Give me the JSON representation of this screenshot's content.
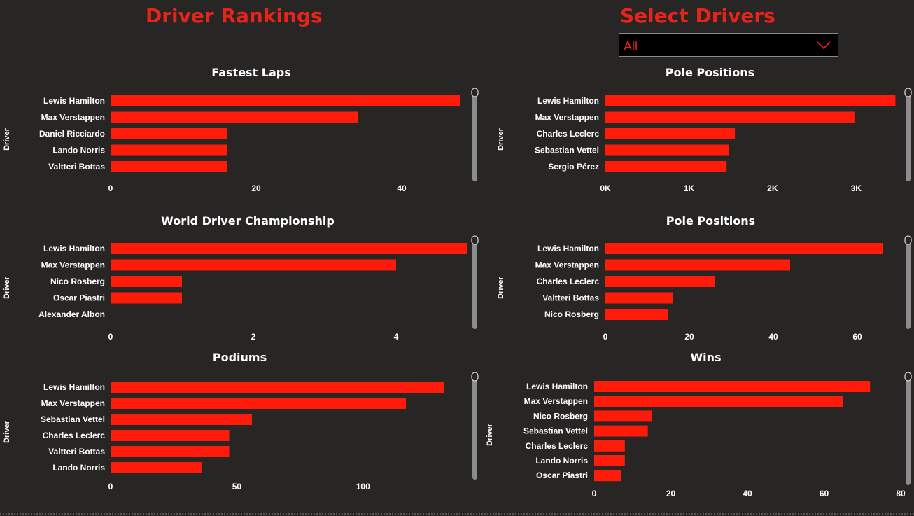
{
  "header": {
    "rankings_title": "Driver Rankings",
    "select_title": "Select Drivers"
  },
  "slicer": {
    "value": "All",
    "icon": "chevron-down-icon"
  },
  "colors": {
    "bar": "#ff1a0a",
    "accent": "#e8231a",
    "text": "#ffffff",
    "background": "#282625"
  },
  "chart_data": [
    {
      "id": "fastest-laps",
      "type": "bar",
      "orientation": "horizontal",
      "title": "Fastest Laps",
      "ylabel": "Driver",
      "categories": [
        "Lewis Hamilton",
        "Max Verstappen",
        "Daniel Ricciardo",
        "Lando Norris",
        "Valtteri Bottas"
      ],
      "values": [
        48,
        34,
        16,
        16,
        16
      ],
      "xlim": [
        0,
        50
      ],
      "xticks": [
        0,
        20,
        40
      ],
      "xtick_labels": [
        "0",
        "20",
        "40"
      ]
    },
    {
      "id": "pole-positions-1",
      "type": "bar",
      "orientation": "horizontal",
      "title": "Pole Positions",
      "ylabel": "Driver",
      "categories": [
        "Lewis Hamilton",
        "Max Verstappen",
        "Charles Leclerc",
        "Sebastian Vettel",
        "Sergio Pérez"
      ],
      "values": [
        3470,
        2980,
        1550,
        1480,
        1450
      ],
      "xlim": [
        0,
        3500
      ],
      "xticks": [
        0,
        1000,
        2000,
        3000
      ],
      "xtick_labels": [
        "0K",
        "1K",
        "2K",
        "3K"
      ]
    },
    {
      "id": "world-driver-championship",
      "type": "bar",
      "orientation": "horizontal",
      "title": "World Driver Championship",
      "ylabel": "Driver",
      "categories": [
        "Lewis Hamilton",
        "Max Verstappen",
        "Nico Rosberg",
        "Oscar Piastri",
        "Alexander Albon"
      ],
      "values": [
        5,
        4,
        1,
        1,
        0
      ],
      "xlim": [
        0,
        5
      ],
      "xticks": [
        0,
        2,
        4
      ],
      "xtick_labels": [
        "0",
        "2",
        "4"
      ]
    },
    {
      "id": "pole-positions-2",
      "type": "bar",
      "orientation": "horizontal",
      "title": "Pole Positions",
      "ylabel": "Driver",
      "categories": [
        "Lewis Hamilton",
        "Max Verstappen",
        "Charles Leclerc",
        "Valtteri Bottas",
        "Nico Rosberg"
      ],
      "values": [
        66,
        44,
        26,
        16,
        15
      ],
      "xlim": [
        0,
        70
      ],
      "xticks": [
        0,
        20,
        40,
        60
      ],
      "xtick_labels": [
        "0",
        "20",
        "40",
        "60"
      ]
    },
    {
      "id": "podiums",
      "type": "bar",
      "orientation": "horizontal",
      "title": "Podiums",
      "ylabel": "Driver",
      "categories": [
        "Lewis Hamilton",
        "Max Verstappen",
        "Sebastian Vettel",
        "Charles Leclerc",
        "Valtteri Bottas",
        "Lando Norris"
      ],
      "values": [
        132,
        117,
        56,
        47,
        47,
        36
      ],
      "xlim": [
        0,
        135
      ],
      "xticks": [
        0,
        50,
        100
      ],
      "xtick_labels": [
        "0",
        "50",
        "100"
      ]
    },
    {
      "id": "wins",
      "type": "bar",
      "orientation": "horizontal",
      "title": "Wins",
      "ylabel": "Driver",
      "categories": [
        "Lewis Hamilton",
        "Max Verstappen",
        "Nico Rosberg",
        "Sebastian Vettel",
        "Charles Leclerc",
        "Lando Norris",
        "Oscar Piastri"
      ],
      "values": [
        72,
        65,
        15,
        14,
        8,
        8,
        7
      ],
      "xlim": [
        0,
        80
      ],
      "xticks": [
        0,
        20,
        40,
        60,
        80
      ],
      "xtick_labels": [
        "0",
        "20",
        "40",
        "60",
        "80"
      ]
    }
  ]
}
